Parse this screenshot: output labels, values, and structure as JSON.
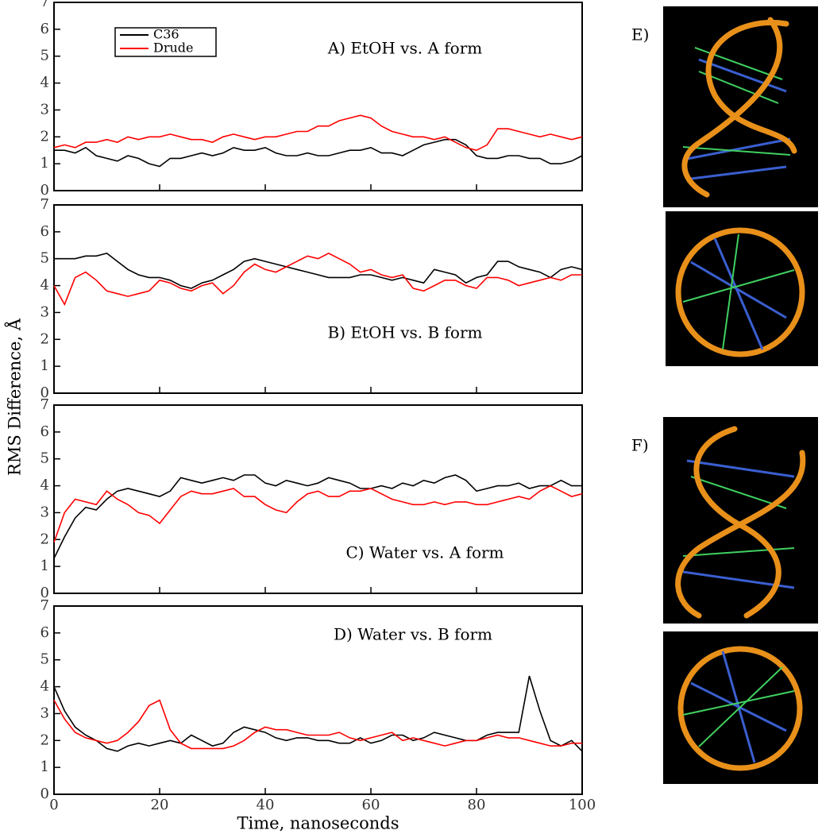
{
  "y_label": "RMS Difference, Å",
  "images": [
    {
      "label": "E)"
    },
    {
      "label": "F)"
    }
  ],
  "chart_data": [
    {
      "type": "line",
      "annotation": "A) EtOH vs. A form",
      "legend": "upper left",
      "show_xtick_labels": false,
      "x": [
        0,
        2,
        4,
        6,
        8,
        10,
        12,
        14,
        16,
        18,
        20,
        22,
        24,
        26,
        28,
        30,
        32,
        34,
        36,
        38,
        40,
        42,
        44,
        46,
        48,
        50,
        52,
        54,
        56,
        58,
        60,
        62,
        64,
        66,
        68,
        70,
        72,
        74,
        76,
        78,
        80,
        82,
        84,
        86,
        88,
        90,
        92,
        94,
        96,
        98,
        100
      ],
      "xlim": [
        0,
        100
      ],
      "xticks": [
        0,
        20,
        40,
        60,
        80,
        100
      ],
      "ylim": [
        0,
        7
      ],
      "yticks": [
        0,
        1,
        2,
        3,
        4,
        5,
        6,
        7
      ],
      "series": [
        {
          "name": "C36",
          "color": "#000000",
          "values": [
            1.5,
            1.5,
            1.4,
            1.6,
            1.3,
            1.2,
            1.1,
            1.3,
            1.2,
            1.0,
            0.9,
            1.2,
            1.2,
            1.3,
            1.4,
            1.3,
            1.4,
            1.6,
            1.5,
            1.5,
            1.6,
            1.4,
            1.3,
            1.3,
            1.4,
            1.3,
            1.3,
            1.4,
            1.5,
            1.5,
            1.6,
            1.4,
            1.4,
            1.3,
            1.5,
            1.7,
            1.8,
            1.9,
            1.9,
            1.7,
            1.3,
            1.2,
            1.2,
            1.3,
            1.3,
            1.2,
            1.2,
            1.0,
            1.0,
            1.1,
            1.3
          ]
        },
        {
          "name": "Drude",
          "color": "#ff0000",
          "values": [
            1.6,
            1.7,
            1.6,
            1.8,
            1.8,
            1.9,
            1.8,
            2.0,
            1.9,
            2.0,
            2.0,
            2.1,
            2.0,
            1.9,
            1.9,
            1.8,
            2.0,
            2.1,
            2.0,
            1.9,
            2.0,
            2.0,
            2.1,
            2.2,
            2.2,
            2.4,
            2.4,
            2.6,
            2.7,
            2.8,
            2.7,
            2.4,
            2.2,
            2.1,
            2.0,
            2.0,
            1.9,
            2.0,
            1.8,
            1.6,
            1.5,
            1.7,
            2.3,
            2.3,
            2.2,
            2.1,
            2.0,
            2.1,
            2.0,
            1.9,
            2.0
          ]
        }
      ]
    },
    {
      "type": "line",
      "annotation": "B) EtOH vs. B form",
      "show_xtick_labels": false,
      "x": [
        0,
        2,
        4,
        6,
        8,
        10,
        12,
        14,
        16,
        18,
        20,
        22,
        24,
        26,
        28,
        30,
        32,
        34,
        36,
        38,
        40,
        42,
        44,
        46,
        48,
        50,
        52,
        54,
        56,
        58,
        60,
        62,
        64,
        66,
        68,
        70,
        72,
        74,
        76,
        78,
        80,
        82,
        84,
        86,
        88,
        90,
        92,
        94,
        96,
        98,
        100
      ],
      "xlim": [
        0,
        100
      ],
      "xticks": [
        0,
        20,
        40,
        60,
        80,
        100
      ],
      "ylim": [
        0,
        7
      ],
      "yticks": [
        0,
        1,
        2,
        3,
        4,
        5,
        6,
        7
      ],
      "series": [
        {
          "color": "#000000",
          "values": [
            5.0,
            5.0,
            5.0,
            5.1,
            5.1,
            5.2,
            4.9,
            4.6,
            4.4,
            4.3,
            4.3,
            4.2,
            4.0,
            3.9,
            4.1,
            4.2,
            4.4,
            4.6,
            4.9,
            5.0,
            4.9,
            4.8,
            4.7,
            4.6,
            4.5,
            4.4,
            4.3,
            4.3,
            4.3,
            4.4,
            4.4,
            4.3,
            4.2,
            4.3,
            4.2,
            4.1,
            4.6,
            4.5,
            4.4,
            4.1,
            4.3,
            4.4,
            4.9,
            4.9,
            4.7,
            4.6,
            4.5,
            4.3,
            4.6,
            4.7,
            4.6
          ]
        },
        {
          "color": "#ff0000",
          "values": [
            4.0,
            3.3,
            4.3,
            4.5,
            4.2,
            3.8,
            3.7,
            3.6,
            3.7,
            3.8,
            4.2,
            4.1,
            3.9,
            3.8,
            4.0,
            4.1,
            3.7,
            4.0,
            4.5,
            4.8,
            4.6,
            4.5,
            4.7,
            4.9,
            5.1,
            5.0,
            5.2,
            5.0,
            4.8,
            4.5,
            4.6,
            4.4,
            4.3,
            4.4,
            3.9,
            3.8,
            4.0,
            4.2,
            4.2,
            4.0,
            3.9,
            4.3,
            4.3,
            4.2,
            4.0,
            4.1,
            4.2,
            4.3,
            4.2,
            4.4,
            4.4
          ]
        }
      ]
    },
    {
      "type": "line",
      "annotation": "C) Water vs. A form",
      "show_xtick_labels": false,
      "x": [
        0,
        2,
        4,
        6,
        8,
        10,
        12,
        14,
        16,
        18,
        20,
        22,
        24,
        26,
        28,
        30,
        32,
        34,
        36,
        38,
        40,
        42,
        44,
        46,
        48,
        50,
        52,
        54,
        56,
        58,
        60,
        62,
        64,
        66,
        68,
        70,
        72,
        74,
        76,
        78,
        80,
        82,
        84,
        86,
        88,
        90,
        92,
        94,
        96,
        98,
        100
      ],
      "xlim": [
        0,
        100
      ],
      "xticks": [
        0,
        20,
        40,
        60,
        80,
        100
      ],
      "ylim": [
        0,
        7
      ],
      "yticks": [
        0,
        1,
        2,
        3,
        4,
        5,
        6,
        7
      ],
      "series": [
        {
          "color": "#000000",
          "values": [
            1.3,
            2.1,
            2.8,
            3.2,
            3.1,
            3.5,
            3.8,
            3.9,
            3.8,
            3.7,
            3.6,
            3.8,
            4.3,
            4.2,
            4.1,
            4.2,
            4.3,
            4.2,
            4.4,
            4.4,
            4.1,
            4.0,
            4.2,
            4.1,
            4.0,
            4.1,
            4.3,
            4.2,
            4.1,
            3.9,
            3.9,
            4.0,
            3.9,
            4.1,
            4.0,
            4.2,
            4.1,
            4.3,
            4.4,
            4.2,
            3.8,
            3.9,
            4.0,
            4.0,
            4.1,
            3.9,
            4.0,
            4.0,
            4.2,
            4.0,
            4.0
          ]
        },
        {
          "color": "#ff0000",
          "values": [
            1.9,
            3.0,
            3.5,
            3.4,
            3.3,
            3.8,
            3.5,
            3.3,
            3.0,
            2.9,
            2.6,
            3.1,
            3.6,
            3.8,
            3.7,
            3.7,
            3.8,
            3.9,
            3.6,
            3.6,
            3.3,
            3.1,
            3.0,
            3.4,
            3.7,
            3.8,
            3.6,
            3.6,
            3.8,
            3.8,
            3.9,
            3.7,
            3.5,
            3.4,
            3.3,
            3.3,
            3.4,
            3.3,
            3.4,
            3.4,
            3.3,
            3.3,
            3.4,
            3.5,
            3.6,
            3.5,
            3.8,
            4.0,
            3.8,
            3.6,
            3.7
          ]
        }
      ]
    },
    {
      "type": "line",
      "annotation": "D) Water vs. B form",
      "show_xtick_labels": true,
      "x_label": "Time, nanoseconds",
      "x": [
        0,
        2,
        4,
        6,
        8,
        10,
        12,
        14,
        16,
        18,
        20,
        22,
        24,
        26,
        28,
        30,
        32,
        34,
        36,
        38,
        40,
        42,
        44,
        46,
        48,
        50,
        52,
        54,
        56,
        58,
        60,
        62,
        64,
        66,
        68,
        70,
        72,
        74,
        76,
        78,
        80,
        82,
        84,
        86,
        88,
        90,
        92,
        94,
        96,
        98,
        100
      ],
      "xlim": [
        0,
        100
      ],
      "xticks": [
        0,
        20,
        40,
        60,
        80,
        100
      ],
      "ylim": [
        0,
        7
      ],
      "yticks": [
        0,
        1,
        2,
        3,
        4,
        5,
        6,
        7
      ],
      "series": [
        {
          "color": "#000000",
          "values": [
            4.0,
            3.1,
            2.5,
            2.2,
            2.0,
            1.7,
            1.6,
            1.8,
            1.9,
            1.8,
            1.9,
            2.0,
            1.9,
            2.2,
            2.0,
            1.8,
            1.9,
            2.3,
            2.5,
            2.4,
            2.3,
            2.1,
            2.0,
            2.1,
            2.1,
            2.0,
            2.0,
            1.9,
            1.9,
            2.1,
            1.9,
            2.0,
            2.2,
            2.2,
            2.0,
            2.1,
            2.3,
            2.2,
            2.1,
            2.0,
            2.0,
            2.2,
            2.3,
            2.3,
            2.3,
            4.4,
            3.1,
            2.0,
            1.8,
            2.0,
            1.6
          ]
        },
        {
          "color": "#ff0000",
          "values": [
            3.5,
            2.8,
            2.3,
            2.1,
            2.0,
            1.9,
            2.0,
            2.3,
            2.7,
            3.3,
            3.5,
            2.4,
            1.9,
            1.7,
            1.7,
            1.7,
            1.7,
            1.8,
            2.0,
            2.3,
            2.5,
            2.4,
            2.4,
            2.3,
            2.2,
            2.2,
            2.2,
            2.3,
            2.1,
            2.0,
            2.1,
            2.2,
            2.3,
            2.0,
            2.1,
            2.0,
            1.9,
            1.8,
            1.9,
            2.0,
            2.0,
            2.1,
            2.2,
            2.1,
            2.1,
            2.0,
            1.9,
            1.8,
            1.8,
            1.9,
            1.9
          ]
        }
      ]
    }
  ]
}
